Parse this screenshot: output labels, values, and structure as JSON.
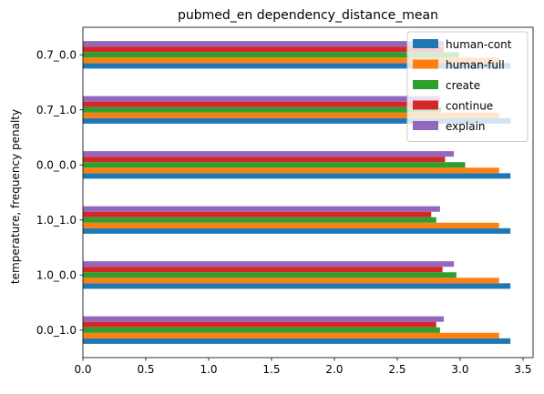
{
  "chart_data": {
    "type": "bar",
    "orientation": "horizontal",
    "title": "pubmed_en dependency_distance_mean",
    "xlabel": "",
    "ylabel": "temperature, frequency penalty",
    "categories": [
      "0.0_1.0",
      "1.0_0.0",
      "1.0_1.0",
      "0.0_0.0",
      "0.7_1.0",
      "0.7_0.0"
    ],
    "xlim": [
      0,
      3.58
    ],
    "xticks": [
      "0.0",
      "0.5",
      "1.0",
      "1.5",
      "2.0",
      "2.5",
      "3.0",
      "3.5"
    ],
    "series": [
      {
        "name": "human-cont",
        "color": "#1f77b4",
        "values": [
          3.4,
          3.4,
          3.4,
          3.4,
          3.4,
          3.4
        ]
      },
      {
        "name": "human-full",
        "color": "#ff7f0e",
        "values": [
          3.31,
          3.31,
          3.31,
          3.31,
          3.31,
          3.31
        ]
      },
      {
        "name": "create",
        "color": "#2ca02c",
        "values": [
          2.84,
          2.97,
          2.81,
          3.04,
          2.85,
          2.99
        ]
      },
      {
        "name": "continue",
        "color": "#d62728",
        "values": [
          2.81,
          2.86,
          2.77,
          2.88,
          2.73,
          2.87
        ]
      },
      {
        "name": "explain",
        "color": "#9467bd",
        "values": [
          2.87,
          2.95,
          2.84,
          2.95,
          2.84,
          2.87
        ]
      }
    ],
    "legend": "top-right",
    "grid": false
  }
}
